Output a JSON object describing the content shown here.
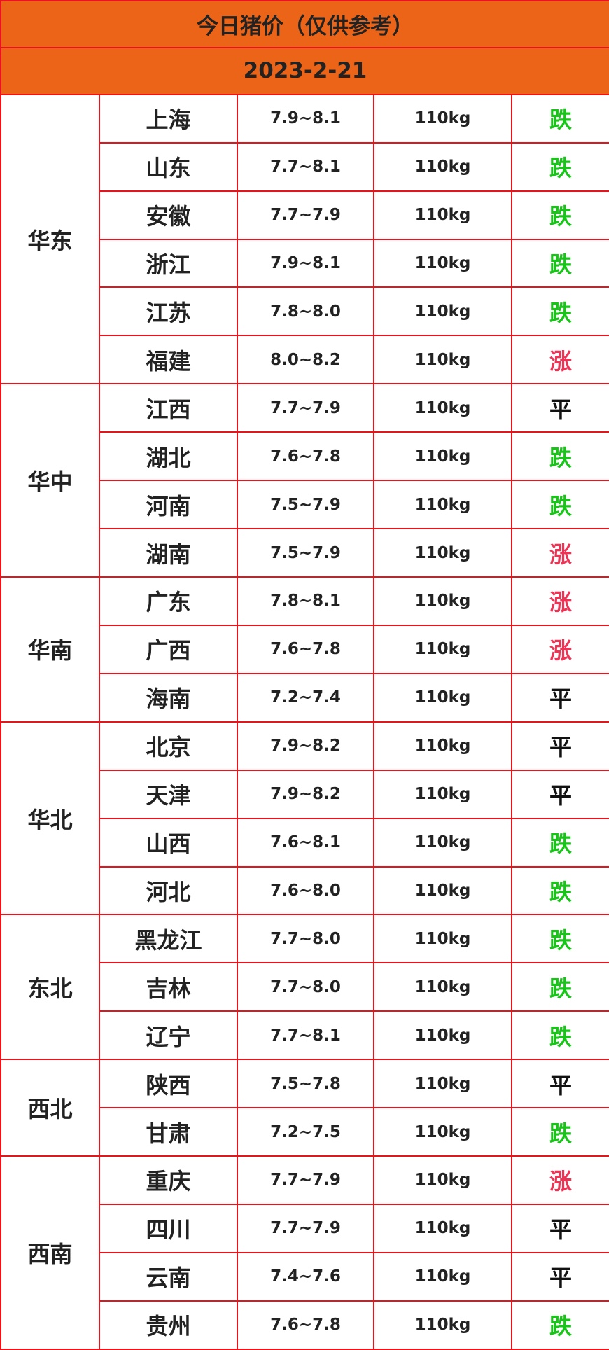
{
  "header": {
    "title": "今日猪价（仅供参考）",
    "date": "2023-2-21"
  },
  "regions": [
    {
      "name": "华东",
      "rows": [
        [
          "上海",
          "7.9~8.1",
          "110kg",
          "跌",
          "#18c418"
        ],
        [
          "山东",
          "7.7~8.1",
          "110kg",
          "跌",
          "#18c418"
        ],
        [
          "安徽",
          "7.7~7.9",
          "110kg",
          "跌",
          "#18c418"
        ],
        [
          "浙江",
          "7.9~8.1",
          "110kg",
          "跌",
          "#18c418"
        ],
        [
          "江苏",
          "7.8~8.0",
          "110kg",
          "跌",
          "#18c418"
        ],
        [
          "福建",
          "8.0~8.2",
          "110kg",
          "涨",
          "#ee3355"
        ]
      ]
    },
    {
      "name": "华中",
      "rows": [
        [
          "江西",
          "7.7~7.9",
          "110kg",
          "平",
          "#111111"
        ],
        [
          "湖北",
          "7.6~7.8",
          "110kg",
          "跌",
          "#18c418"
        ],
        [
          "河南",
          "7.5~7.9",
          "110kg",
          "跌",
          "#18c418"
        ],
        [
          "湖南",
          "7.5~7.9",
          "110kg",
          "涨",
          "#ee3355"
        ]
      ]
    },
    {
      "name": "华南",
      "rows": [
        [
          "广东",
          "7.8~8.1",
          "110kg",
          "涨",
          "#ee3355"
        ],
        [
          "广西",
          "7.6~7.8",
          "110kg",
          "涨",
          "#ee3355"
        ],
        [
          "海南",
          "7.2~7.4",
          "110kg",
          "平",
          "#111111"
        ]
      ]
    },
    {
      "name": "华北",
      "rows": [
        [
          "北京",
          "7.9~8.2",
          "110kg",
          "平",
          "#111111"
        ],
        [
          "天津",
          "7.9~8.2",
          "110kg",
          "平",
          "#111111"
        ],
        [
          "山西",
          "7.6~8.1",
          "110kg",
          "跌",
          "#18c418"
        ],
        [
          "河北",
          "7.6~8.0",
          "110kg",
          "跌",
          "#18c418"
        ]
      ]
    },
    {
      "name": "东北",
      "rows": [
        [
          "黑龙江",
          "7.7~8.0",
          "110kg",
          "跌",
          "#18c418"
        ],
        [
          "吉林",
          "7.7~8.0",
          "110kg",
          "跌",
          "#18c418"
        ],
        [
          "辽宁",
          "7.7~8.1",
          "110kg",
          "跌",
          "#18c418"
        ]
      ]
    },
    {
      "name": "西北",
      "rows": [
        [
          "陕西",
          "7.5~7.8",
          "110kg",
          "平",
          "#111111"
        ],
        [
          "甘肃",
          "7.2~7.5",
          "110kg",
          "跌",
          "#18c418"
        ]
      ]
    },
    {
      "name": "西南",
      "rows": [
        [
          "重庆",
          "7.7~7.9",
          "110kg",
          "涨",
          "#ee3355"
        ],
        [
          "四川",
          "7.7~7.9",
          "110kg",
          "平",
          "#111111"
        ],
        [
          "云南",
          "7.4~7.6",
          "110kg",
          "平",
          "#111111"
        ],
        [
          "贵州",
          "7.6~7.8",
          "110kg",
          "跌",
          "#18c418"
        ]
      ]
    }
  ]
}
